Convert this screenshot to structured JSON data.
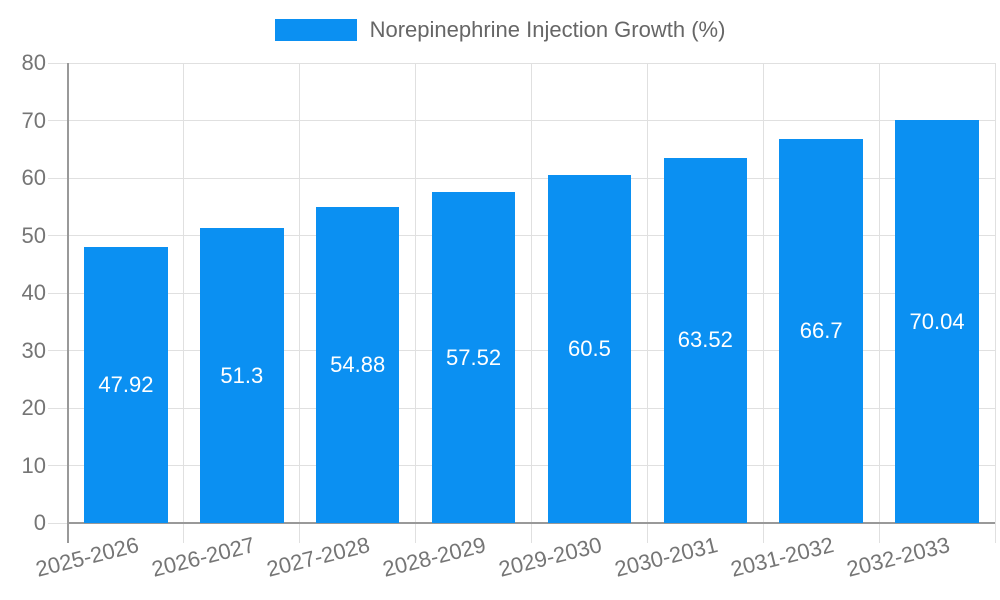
{
  "chart_data": {
    "type": "bar",
    "title": "",
    "legend": "Norepinephrine Injection Growth (%)",
    "legend_position": "top-center",
    "categories": [
      "2025-2026",
      "2026-2027",
      "2027-2028",
      "2028-2029",
      "2029-2030",
      "2030-2031",
      "2031-2032",
      "2032-2033"
    ],
    "values": [
      47.92,
      51.3,
      54.88,
      57.52,
      60.5,
      63.52,
      66.7,
      70.04
    ],
    "value_labels": [
      "47.92",
      "51.3",
      "54.88",
      "57.52",
      "60.5",
      "63.52",
      "66.7",
      "70.04"
    ],
    "xlabel": "",
    "ylabel": "",
    "ylim": [
      0,
      80
    ],
    "yticks": [
      0,
      10,
      20,
      30,
      40,
      50,
      60,
      70,
      80
    ],
    "grid": true,
    "colors": {
      "bar": "#0b90f2",
      "grid": "#e0e0e0",
      "axis": "#999999",
      "tick_text": "#757575",
      "legend_text": "#666666",
      "value_text": "#ffffff",
      "background": "#ffffff"
    }
  }
}
